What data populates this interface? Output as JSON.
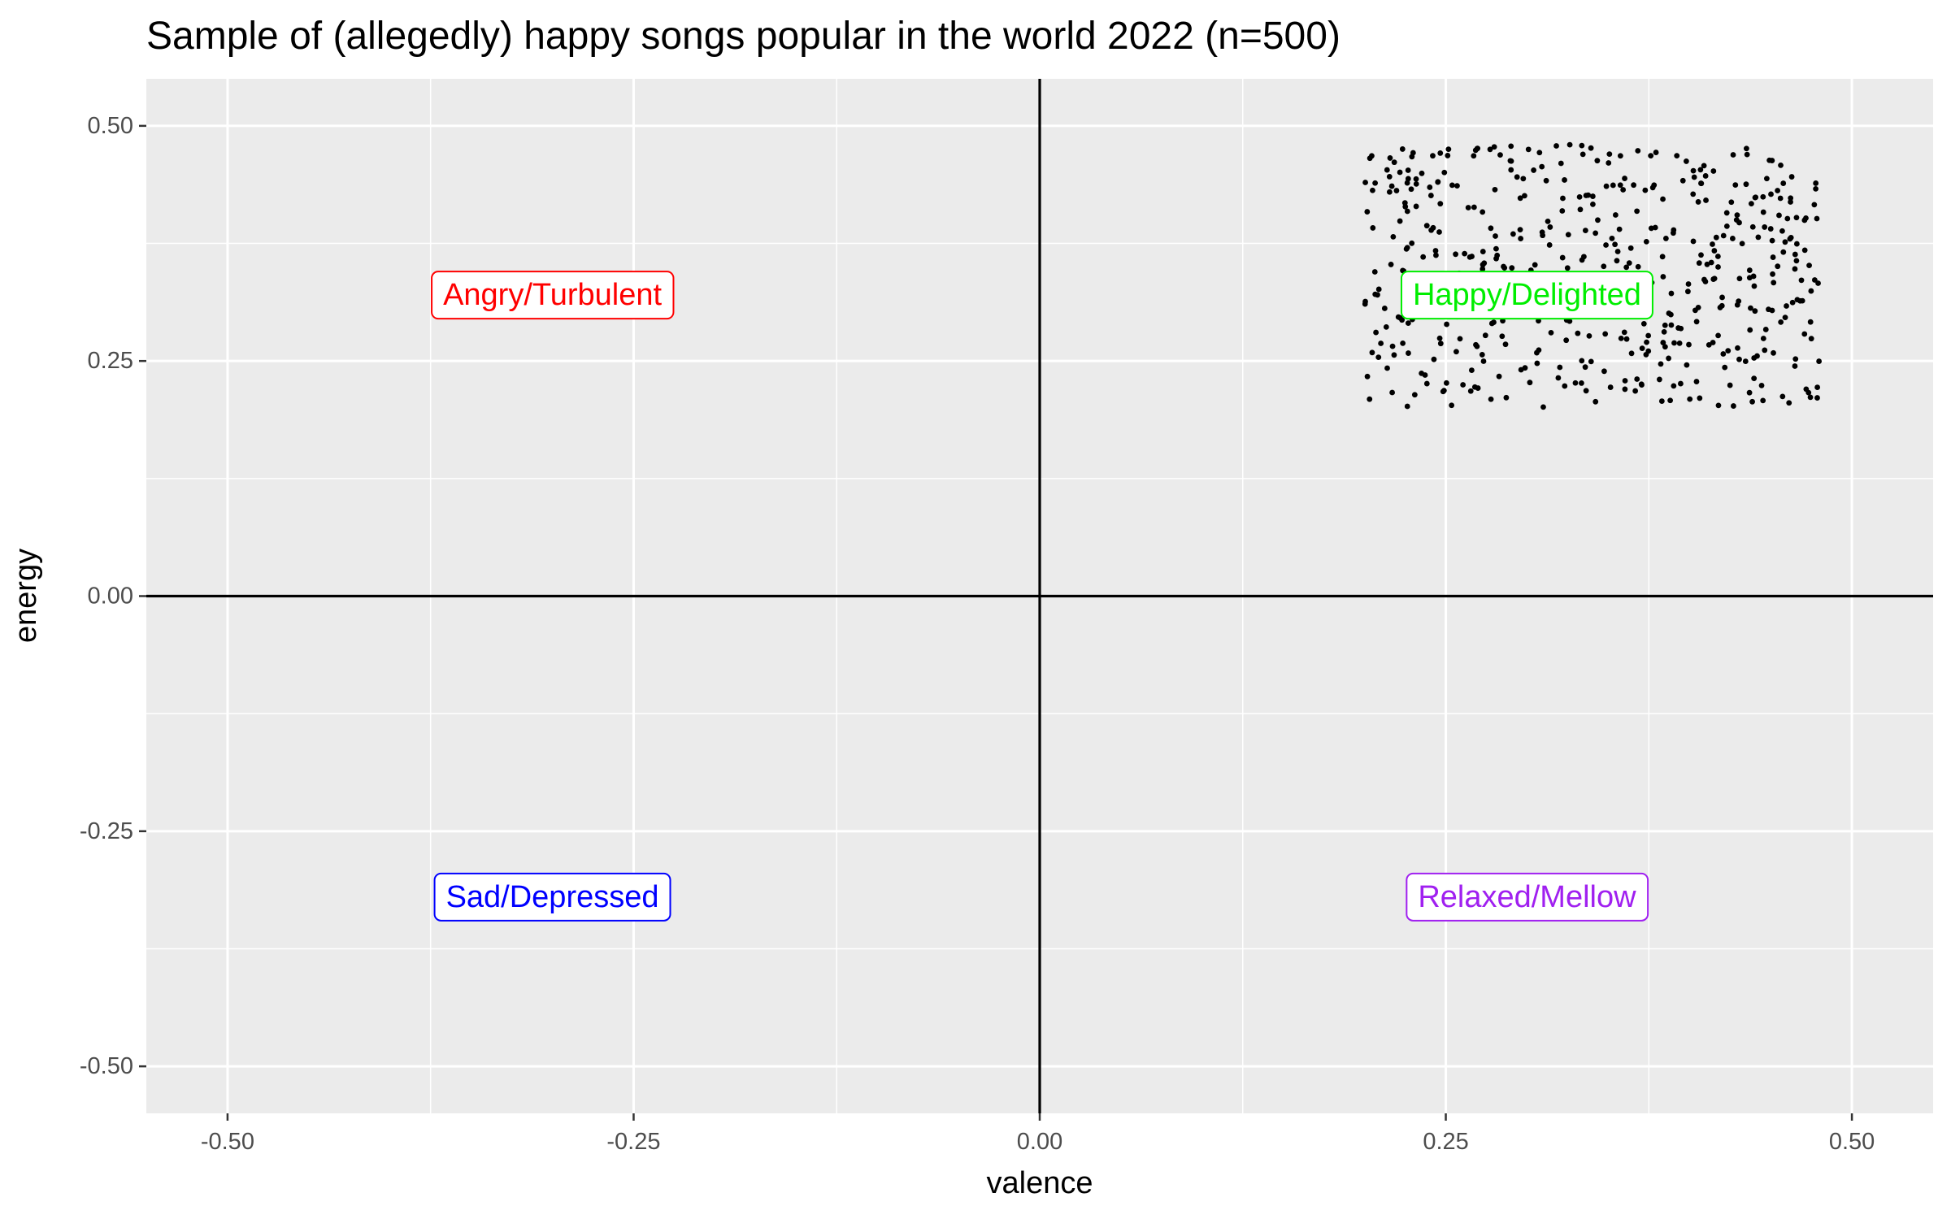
{
  "chart_data": {
    "type": "scatter",
    "title": "Sample of (allegedly) happy songs popular in the world 2022 (n=500)",
    "xlabel": "valence",
    "ylabel": "energy",
    "xlim": [
      -0.55,
      0.55
    ],
    "ylim": [
      -0.55,
      0.55
    ],
    "x_ticks": [
      -0.5,
      -0.25,
      0.0,
      0.25,
      0.5
    ],
    "y_ticks": [
      -0.5,
      -0.25,
      0.0,
      0.25,
      0.5
    ],
    "x_tick_labels": [
      "-0.50",
      "-0.25",
      "0.00",
      "0.25",
      "0.50"
    ],
    "y_tick_labels": [
      "-0.50",
      "-0.25",
      "0.00",
      "0.25",
      "0.50"
    ],
    "grid": true,
    "reference_lines": {
      "x": 0,
      "y": 0
    },
    "point_count": 500,
    "point_region": {
      "x_range": [
        0.2,
        0.48
      ],
      "y_range": [
        0.2,
        0.48
      ]
    },
    "annotations": [
      {
        "text": "Angry/Turbulent",
        "x": -0.3,
        "y": 0.32,
        "color": "#ff0000"
      },
      {
        "text": "Happy/Delighted",
        "x": 0.3,
        "y": 0.32,
        "color": "#00ee00"
      },
      {
        "text": "Sad/Depressed",
        "x": -0.3,
        "y": -0.32,
        "color": "#0000ff"
      },
      {
        "text": "Relaxed/Mellow",
        "x": 0.3,
        "y": -0.32,
        "color": "#a020f0"
      }
    ],
    "colors": {
      "panel_background": "#ebebeb",
      "grid_major": "#ffffff",
      "point": "#000000",
      "reference_line": "#000000"
    }
  }
}
